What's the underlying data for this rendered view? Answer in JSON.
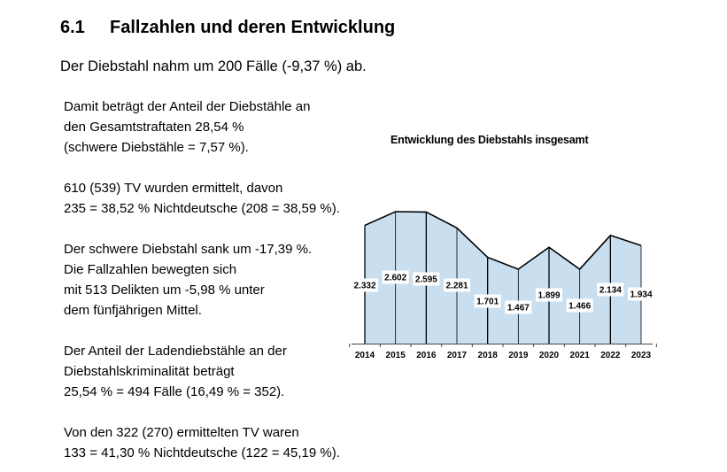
{
  "section": {
    "number": "6.1",
    "title": "Fallzahlen und deren Entwicklung"
  },
  "lead": "Der Diebstahl nahm um 200 Fälle (-9,37 %) ab.",
  "paragraphs": [
    [
      "Damit beträgt der Anteil der Diebstähle an",
      "den Gesamtstraftaten 28,54 %",
      "(schwere Diebstähle = 7,57 %)."
    ],
    [
      "610 (539) TV wurden ermittelt, davon",
      "235 = 38,52 % Nichtdeutsche (208 = 38,59 %)."
    ],
    [
      "Der schwere Diebstahl sank um -17,39 %.",
      "Die Fallzahlen bewegten sich",
      "mit 513 Delikten um -5,98 % unter",
      "dem fünfjährigen Mittel."
    ],
    [
      "Der Anteil der Ladendiebstähle an der",
      "Diebstahlskriminalität beträgt",
      "25,54 % = 494 Fälle (16,49 % = 352)."
    ],
    [
      "Von den 322 (270) ermittelten TV waren",
      "133 = 41,30 % Nichtdeutsche (122 = 45,19 %)."
    ]
  ],
  "chart_data": {
    "type": "area",
    "title": "Entwicklung des Diebstahls insgesamt",
    "categories": [
      "2014",
      "2015",
      "2016",
      "2017",
      "2018",
      "2019",
      "2020",
      "2021",
      "2022",
      "2023"
    ],
    "values": [
      2332,
      2602,
      2595,
      2281,
      1701,
      1467,
      1899,
      1466,
      2134,
      1934
    ],
    "data_labels": [
      "2.332",
      "2.602",
      "2.595",
      "2.281",
      "1.701",
      "1.467",
      "1.899",
      "1.466",
      "2.134",
      "1.934"
    ],
    "xlabel": "",
    "ylabel": "",
    "ylim": [
      0,
      2650
    ],
    "grid": false,
    "legend": "none",
    "colors": {
      "fill": "#c9dff0",
      "line": "#000000",
      "label_bg": "#ffffff"
    }
  }
}
